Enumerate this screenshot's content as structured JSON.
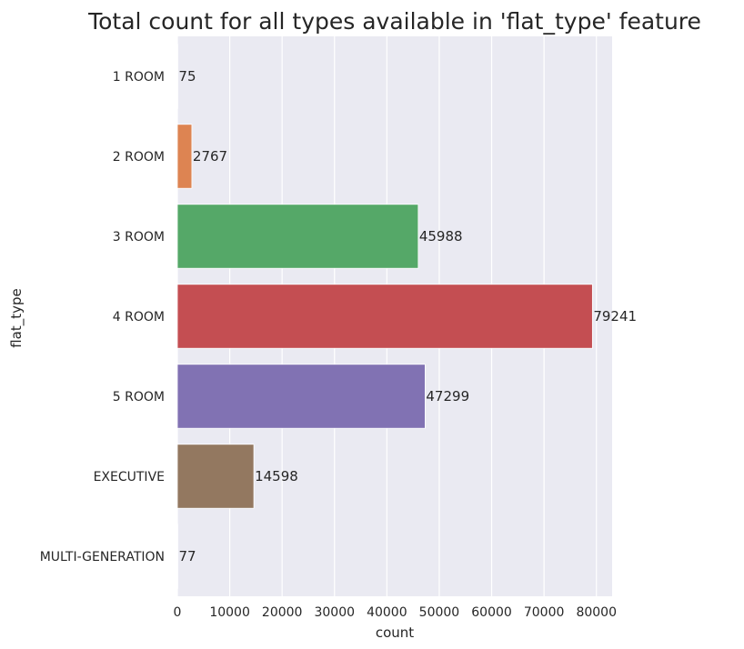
{
  "chart_data": {
    "type": "bar",
    "orientation": "horizontal",
    "title": "Total count for all types available in 'flat_type' feature",
    "xlabel": "count",
    "ylabel": "flat_type",
    "categories": [
      "1 ROOM",
      "2 ROOM",
      "3 ROOM",
      "4 ROOM",
      "5 ROOM",
      "EXECUTIVE",
      "MULTI-GENERATION"
    ],
    "values": [
      75,
      2767,
      45988,
      79241,
      47299,
      14598,
      77
    ],
    "data_labels": [
      "75",
      "2767",
      "45988",
      "79241",
      "47299",
      "14598",
      "77"
    ],
    "colors": [
      "#4c72b0",
      "#dd8452",
      "#55a868",
      "#c44e52",
      "#8172b3",
      "#937860",
      "#da8bc3"
    ],
    "xlim": [
      0,
      83000
    ],
    "xticks": [
      0,
      10000,
      20000,
      30000,
      40000,
      50000,
      60000,
      70000,
      80000
    ],
    "xtick_labels": [
      "0",
      "10000",
      "20000",
      "30000",
      "40000",
      "50000",
      "60000",
      "70000",
      "80000"
    ],
    "grid": true,
    "background": "#eaeaf2",
    "grid_color": "#ffffff"
  }
}
